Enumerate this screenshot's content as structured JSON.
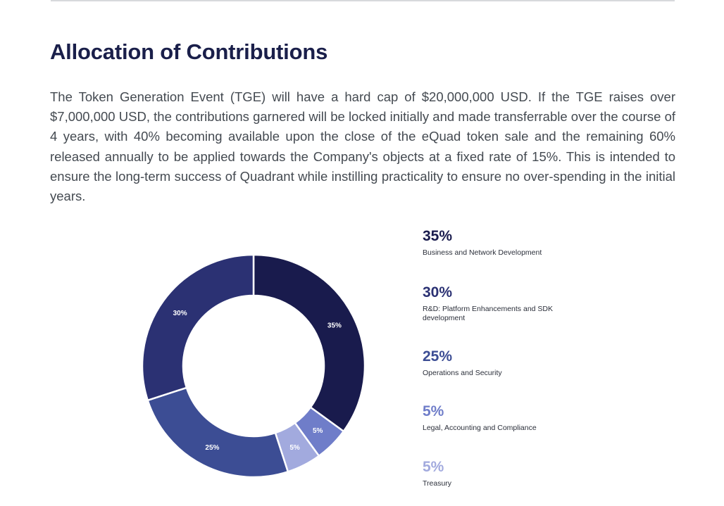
{
  "page": {
    "title": "Allocation of Contributions",
    "intro": "The Token Generation Event (TGE) will have a hard cap of $20,000,000 USD. If the TGE raises over $7,000,000 USD, the contributions garnered will be locked initially and made transferrable over the course of 4 years, with 40% becoming available upon the close of the eQuad token sale and the remaining 60% released annually to be applied towards the Company's objects at a fixed rate of 15%. This is intended to ensure the long-term success of Quadrant while instilling practicality to ensure no over-spending in the initial years."
  },
  "chart_data": {
    "type": "pie",
    "variant": "donut",
    "title": "",
    "categories": [
      "Business and Network Development",
      "R&D: Platform Enhancements and SDK development",
      "Operations  and Security",
      "Legal, Accounting and Compliance",
      "Treasury"
    ],
    "values": [
      35,
      30,
      25,
      5,
      5
    ],
    "slice_labels": [
      "35%",
      "30%",
      "25%",
      "5%",
      "5%"
    ],
    "slice_order_clockwise_from_top": [
      0,
      3,
      4,
      2,
      1
    ],
    "colors": [
      "#191b4d",
      "#2b3173",
      "#3c4d94",
      "#6f7dc9",
      "#a2aade"
    ],
    "legend_position": "right"
  },
  "legend": {
    "items": [
      {
        "pct": "35%",
        "label": "Business and Network Development",
        "color": "#191b4d"
      },
      {
        "pct": "30%",
        "label": "R&D: Platform Enhancements and SDK development",
        "color": "#2b3173"
      },
      {
        "pct": "25%",
        "label": "Operations  and Security",
        "color": "#3c4d94"
      },
      {
        "pct": "5%",
        "label": "Legal, Accounting and Compliance",
        "color": "#6f7dc9"
      },
      {
        "pct": "5%",
        "label": "Treasury",
        "color": "#a2aade"
      }
    ]
  }
}
